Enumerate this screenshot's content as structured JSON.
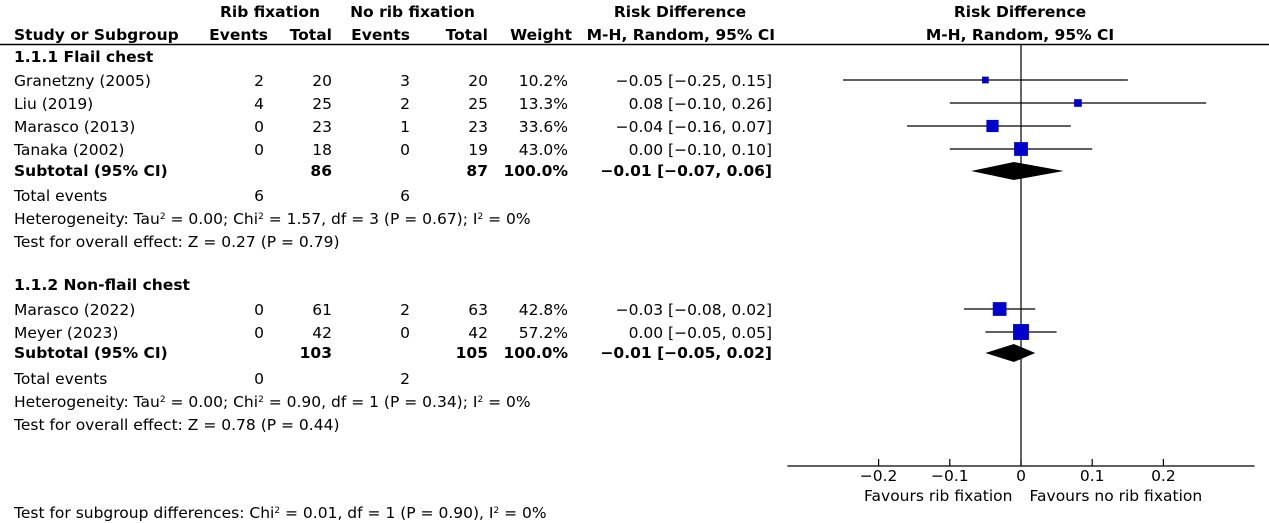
{
  "headers": {
    "study": "Study or Subgroup",
    "group1": "Rib fixation",
    "group2": "No rib fixation",
    "events": "Events",
    "total": "Total",
    "weight": "Weight",
    "effect_title": "Risk Difference",
    "effect_method": "M-H, Random, 95% CI",
    "plot_title": "Risk Difference",
    "plot_method": "M-H, Random, 95% CI"
  },
  "subgroups": [
    {
      "title": "1.1.1 Flail chest",
      "studies": [
        {
          "name": "Granetzny (2005)",
          "e1": "2",
          "n1": "20",
          "e2": "3",
          "n2": "20",
          "weight": "10.2%",
          "ci": "−0.05 [−0.25, 0.15]"
        },
        {
          "name": "Liu (2019)",
          "e1": "4",
          "n1": "25",
          "e2": "2",
          "n2": "25",
          "weight": "13.3%",
          "ci": "0.08 [−0.10, 0.26]"
        },
        {
          "name": "Marasco (2013)",
          "e1": "0",
          "n1": "23",
          "e2": "1",
          "n2": "23",
          "weight": "33.6%",
          "ci": "−0.04 [−0.16, 0.07]"
        },
        {
          "name": "Tanaka (2002)",
          "e1": "0",
          "n1": "18",
          "e2": "0",
          "n2": "19",
          "weight": "43.0%",
          "ci": "0.00 [−0.10, 0.10]"
        }
      ],
      "subtotal": {
        "label": "Subtotal (95% CI)",
        "n1": "86",
        "n2": "87",
        "weight": "100.0%",
        "ci": "−0.01 [−0.07, 0.06]"
      },
      "total_events": {
        "label": "Total events",
        "e1": "6",
        "e2": "6"
      },
      "heterogeneity": {
        "prefix": "Heterogeneity: Tau",
        "mid1": " = 0.00; Chi",
        "mid2": " = 1.57, df = 3 (P = 0.67); I",
        "end": " = 0%"
      },
      "overall": "Test for overall effect: Z = 0.27 (P = 0.79)"
    },
    {
      "title": "1.1.2 Non-flail chest",
      "studies": [
        {
          "name": "Marasco (2022)",
          "e1": "0",
          "n1": "61",
          "e2": "2",
          "n2": "63",
          "weight": "42.8%",
          "ci": "−0.03 [−0.08, 0.02]"
        },
        {
          "name": "Meyer (2023)",
          "e1": "0",
          "n1": "42",
          "e2": "0",
          "n2": "42",
          "weight": "57.2%",
          "ci": "0.00 [−0.05, 0.05]"
        }
      ],
      "subtotal": {
        "label": "Subtotal (95% CI)",
        "n1": "103",
        "n2": "105",
        "weight": "100.0%",
        "ci": "−0.01 [−0.05, 0.02]"
      },
      "total_events": {
        "label": "Total events",
        "e1": "0",
        "e2": "2"
      },
      "heterogeneity": {
        "prefix": "Heterogeneity: Tau",
        "mid1": " = 0.00; Chi",
        "mid2": " = 0.90, df = 1 (P = 0.34); I",
        "end": " = 0%"
      },
      "overall": "Test for overall effect: Z = 0.78 (P = 0.44)"
    }
  ],
  "subgroup_test": {
    "prefix": "Test for subgroup differences: Chi",
    "mid": " = 0.01, df = 1 (P = 0.90), I",
    "end": " = 0%"
  },
  "sup2": "2",
  "chart_data": {
    "type": "forest",
    "xlim": [
      -0.3,
      0.3
    ],
    "ticks": [
      -0.2,
      -0.1,
      0,
      0.1,
      0.2
    ],
    "tick_labels": [
      "−0.2",
      "−0.1",
      "0",
      "0.1",
      "0.2"
    ],
    "xlabel_left": "Favours rib fixation",
    "xlabel_right": "Favours no rib fixation",
    "rows": [
      {
        "study": "Granetzny (2005)",
        "est": -0.05,
        "lo": -0.25,
        "hi": 0.15,
        "weight": 10.2,
        "kind": "study"
      },
      {
        "study": "Liu (2019)",
        "est": 0.08,
        "lo": -0.1,
        "hi": 0.26,
        "weight": 13.3,
        "kind": "study"
      },
      {
        "study": "Marasco (2013)",
        "est": -0.04,
        "lo": -0.16,
        "hi": 0.07,
        "weight": 33.6,
        "kind": "study"
      },
      {
        "study": "Tanaka (2002)",
        "est": 0.0,
        "lo": -0.1,
        "hi": 0.1,
        "weight": 43.0,
        "kind": "study"
      },
      {
        "study": "Subtotal (95% CI)",
        "est": -0.01,
        "lo": -0.07,
        "hi": 0.06,
        "kind": "summary"
      },
      {
        "study": "Marasco (2022)",
        "est": -0.03,
        "lo": -0.08,
        "hi": 0.02,
        "weight": 42.8,
        "kind": "study"
      },
      {
        "study": "Meyer (2023)",
        "est": 0.0,
        "lo": -0.05,
        "hi": 0.05,
        "weight": 57.2,
        "kind": "study"
      },
      {
        "study": "Subtotal (95% CI)",
        "est": -0.01,
        "lo": -0.05,
        "hi": 0.02,
        "kind": "summary"
      }
    ],
    "colors": {
      "marker": "#0000cc",
      "line": "#000000",
      "diamond": "#000000"
    }
  }
}
